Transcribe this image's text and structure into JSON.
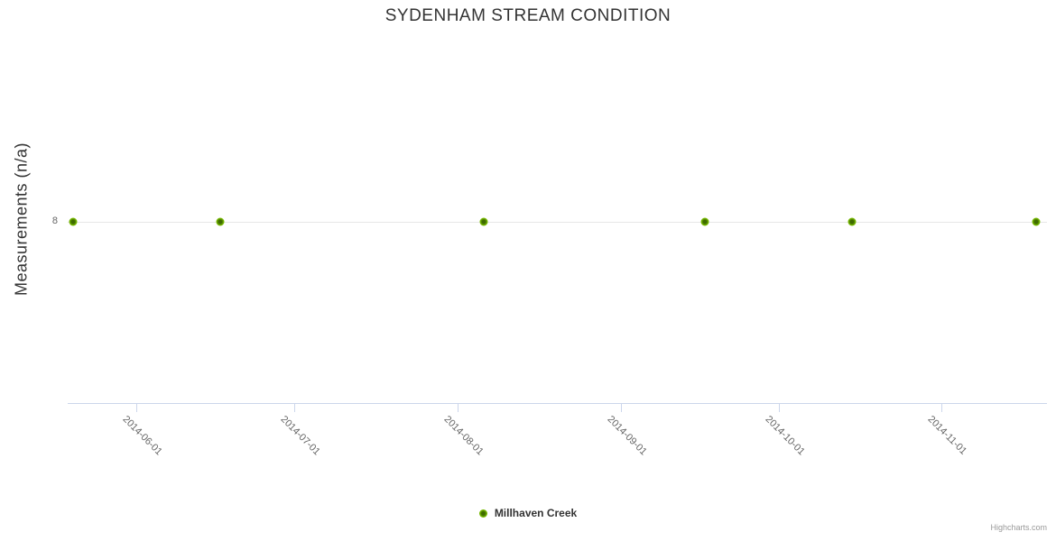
{
  "chart_data": {
    "type": "line",
    "title": "SYDENHAM STREAM CONDITION",
    "xlabel": "",
    "ylabel": "Measurements (n/a)",
    "x_ticks": [
      "2014-06-01",
      "2014-07-01",
      "2014-08-01",
      "2014-09-01",
      "2014-10-01",
      "2014-11-01"
    ],
    "y_ticks": [
      8
    ],
    "xlim": [
      "2014-05-19",
      "2014-11-21"
    ],
    "ylim": [
      7,
      9
    ],
    "grid": "horizontal-only",
    "legend_position": "bottom-center",
    "series": [
      {
        "name": "Millhaven Creek",
        "color": "#76b900",
        "marker_center_color": "#3e6b00",
        "points": [
          {
            "x": "2014-05-20",
            "y": 8
          },
          {
            "x": "2014-06-17",
            "y": 8
          },
          {
            "x": "2014-08-06",
            "y": 8
          },
          {
            "x": "2014-09-17",
            "y": 8
          },
          {
            "x": "2014-10-15",
            "y": 8
          },
          {
            "x": "2014-11-19",
            "y": 8
          }
        ]
      }
    ]
  },
  "colors": {
    "title": "#333333",
    "axis_label": "#666666",
    "axis_line": "#ccd6eb",
    "tick_mark": "#ccd6eb",
    "grid_line": "#e6e6e6",
    "legend_text": "#333333",
    "credits": "#999999"
  },
  "credits": {
    "label": "Highcharts.com"
  }
}
